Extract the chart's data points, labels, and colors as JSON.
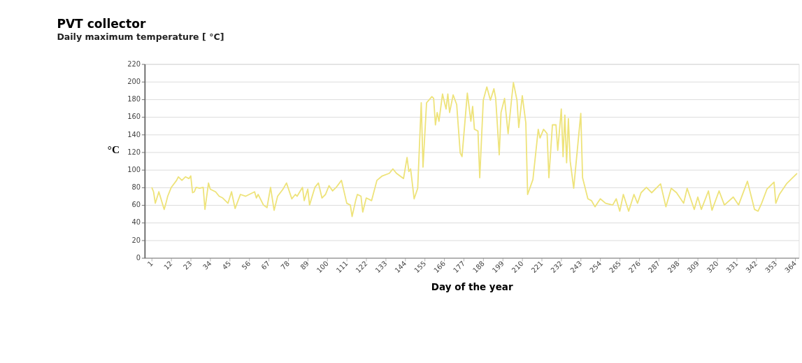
{
  "chart_data": {
    "type": "line",
    "title": "PVT collector",
    "subtitle": "Daily maximum temperature [ °C]",
    "xlabel": "Day of the year",
    "ylabel": "°C",
    "x": [
      1,
      2,
      3,
      5,
      8,
      9,
      10,
      12,
      15,
      16,
      18,
      20,
      22,
      23,
      24,
      25,
      26,
      28,
      30,
      31,
      33,
      34,
      37,
      39,
      41,
      44,
      46,
      48,
      51,
      54,
      57,
      59,
      60,
      61,
      64,
      66,
      68,
      70,
      72,
      75,
      77,
      80,
      82,
      83,
      86,
      87,
      89,
      90,
      93,
      95,
      97,
      99,
      101,
      103,
      105,
      108,
      111,
      113,
      114,
      116,
      117,
      119,
      120,
      122,
      123,
      125,
      128,
      131,
      135,
      137,
      139,
      143,
      145,
      146,
      147,
      149,
      151,
      153,
      154,
      156,
      159,
      160,
      161,
      162,
      163,
      165,
      167,
      168,
      169,
      171,
      173,
      175,
      176,
      179,
      181,
      182,
      183,
      185,
      186,
      188,
      190,
      192,
      194,
      195,
      197,
      198,
      200,
      202,
      204,
      205,
      207,
      208,
      210,
      212,
      213,
      216,
      219,
      220,
      222,
      224,
      225,
      227,
      229,
      230,
      232,
      233,
      234,
      235,
      236,
      237,
      239,
      243,
      244,
      247,
      249,
      251,
      254,
      257,
      261,
      263,
      265,
      267,
      270,
      273,
      275,
      277,
      280,
      283,
      286,
      288,
      291,
      294,
      297,
      301,
      303,
      307,
      309,
      311,
      315,
      317,
      321,
      324,
      329,
      332,
      337,
      341,
      343,
      345,
      348,
      352,
      353,
      355,
      359,
      365
    ],
    "series": [
      {
        "color": "#eee37a",
        "values": [
          80,
          75,
          62,
          75,
          55,
          62,
          70,
          80,
          88,
          92,
          88,
          92,
          90,
          93,
          74,
          75,
          80,
          79,
          80,
          55,
          85,
          78,
          75,
          70,
          68,
          62,
          75,
          56,
          72,
          70,
          73,
          75,
          68,
          72,
          60,
          57,
          80,
          54,
          70,
          78,
          85,
          67,
          72,
          70,
          80,
          65,
          78,
          60,
          80,
          85,
          68,
          72,
          82,
          76,
          80,
          88,
          62,
          60,
          47,
          65,
          72,
          70,
          52,
          68,
          67,
          65,
          88,
          93,
          96,
          101,
          96,
          90,
          114,
          98,
          101,
          67,
          79,
          176,
          103,
          176,
          183,
          181,
          151,
          165,
          155,
          186,
          169,
          186,
          165,
          185,
          174,
          119,
          115,
          187,
          155,
          172,
          146,
          144,
          91,
          179,
          194,
          179,
          192,
          181,
          117,
          165,
          181,
          141,
          181,
          199,
          179,
          148,
          184,
          153,
          72,
          89,
          146,
          136,
          146,
          141,
          91,
          151,
          151,
          122,
          169,
          115,
          162,
          108,
          158,
          110,
          79,
          164,
          91,
          67,
          65,
          58,
          67,
          62,
          60,
          67,
          53,
          72,
          53,
          72,
          62,
          74,
          80,
          74,
          80,
          84,
          58,
          79,
          74,
          62,
          79,
          55,
          69,
          55,
          76,
          54,
          76,
          60,
          69,
          60,
          87,
          55,
          53,
          62,
          78,
          86,
          62,
          72,
          84,
          96
        ]
      }
    ],
    "xlim": [
      -3,
      366
    ],
    "xticks": [
      1,
      12,
      23,
      34,
      45,
      56,
      67,
      78,
      89,
      100,
      111,
      122,
      133,
      144,
      155,
      166,
      177,
      188,
      199,
      210,
      221,
      232,
      243,
      254,
      265,
      276,
      287,
      298,
      309,
      320,
      331,
      342,
      353,
      364
    ],
    "ylim": [
      0,
      220
    ],
    "yticks": [
      0,
      20,
      40,
      60,
      80,
      100,
      120,
      140,
      160,
      180,
      200,
      220
    ],
    "grid": "y"
  }
}
